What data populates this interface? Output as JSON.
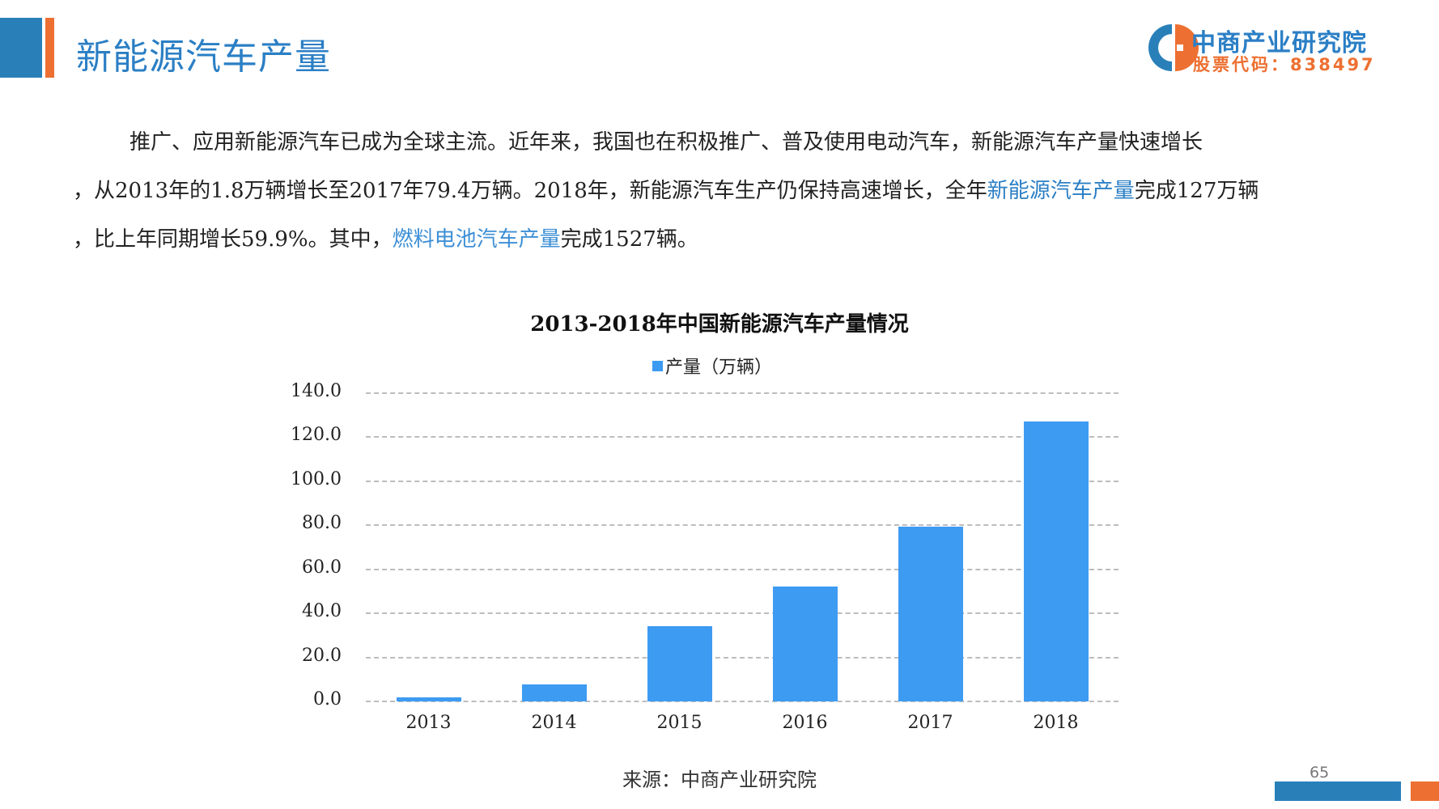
{
  "header": {
    "title": "新能源汽车产量",
    "logo": {
      "name": "中商产业研究院",
      "stock_code": "股票代码：838497",
      "colors": {
        "blue": "#2b7fc5",
        "orange": "#ed7032"
      }
    }
  },
  "body": {
    "line1": "推广、应用新能源汽车已成为全球主流。近年来，我国也在积极推广、普及使用电动汽车，新能源汽车产量快速增长",
    "line2_a": "，从2013年的1.8万辆增长至2017年79.4万辆。2018年，新能源汽车生产仍保持高速增长，全年",
    "line2_hl": "新能源汽车产量",
    "line2_b": "完成127万辆",
    "line3_a": "，比上年同期增长59.9%。其中，",
    "line3_hl": "燃料电池汽车产量",
    "line3_b": "完成1527辆。"
  },
  "chart_data": {
    "type": "bar",
    "title": "2013-2018年中国新能源汽车产量情况",
    "legend": [
      "产量（万辆）"
    ],
    "legend_position": "top",
    "categories": [
      "2013",
      "2014",
      "2015",
      "2016",
      "2017",
      "2018"
    ],
    "series": [
      {
        "name": "产量（万辆）",
        "color": "#3d9bf2",
        "values": [
          1.8,
          7.8,
          34.0,
          52.0,
          79.4,
          127.0
        ]
      }
    ],
    "yticks": [
      "0.0",
      "20.0",
      "40.0",
      "60.0",
      "80.0",
      "100.0",
      "120.0",
      "140.0"
    ],
    "ylim": [
      0,
      140
    ],
    "xlabel": "",
    "ylabel": "",
    "grid": "horizontal dashed"
  },
  "footer": {
    "source": "来源：中商产业研究院",
    "page_number": "65"
  }
}
